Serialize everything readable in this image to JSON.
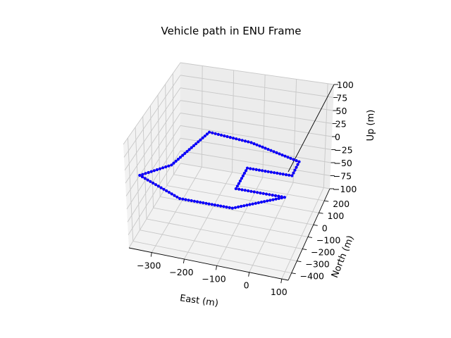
{
  "chart_data": {
    "type": "line",
    "title": "Vehicle path in ENU Frame",
    "xlabel": "East (m)",
    "ylabel": "North (m)",
    "zlabel": "Up (m)",
    "x_ticks": [
      -300,
      -200,
      -100,
      0,
      100
    ],
    "y_ticks": [
      -400,
      -300,
      -200,
      -100,
      0,
      100,
      200
    ],
    "z_ticks": [
      -100,
      -75,
      -50,
      -25,
      0,
      25,
      50,
      75,
      100
    ],
    "xlim": [
      -370,
      120
    ],
    "ylim": [
      -460,
      300
    ],
    "zlim": [
      -100,
      100
    ],
    "grid": true,
    "series": [
      {
        "style": "line",
        "color": "#ff0000",
        "points": [
          {
            "x": -250,
            "y": 180,
            "z": 0
          },
          {
            "x": -110,
            "y": 150,
            "z": 0
          },
          {
            "x": 60,
            "y": 60,
            "z": 0
          },
          {
            "x": 60,
            "y": -60,
            "z": 0
          },
          {
            "x": -80,
            "y": -60,
            "z": 0
          },
          {
            "x": -80,
            "y": -240,
            "z": 0
          },
          {
            "x": 70,
            "y": -240,
            "z": 0
          },
          {
            "x": -60,
            "y": -400,
            "z": 0
          },
          {
            "x": -220,
            "y": -400,
            "z": 0
          },
          {
            "x": -370,
            "y": -270,
            "z": 0
          },
          {
            "x": -300,
            "y": -140,
            "z": 0
          },
          {
            "x": -250,
            "y": 180,
            "z": 0
          }
        ]
      },
      {
        "style": "markers",
        "color": "#0000ff",
        "points": [
          {
            "x": -250,
            "y": 180,
            "z": 0
          },
          {
            "x": -110,
            "y": 150,
            "z": 0
          },
          {
            "x": 60,
            "y": 60,
            "z": 0
          },
          {
            "x": 60,
            "y": -60,
            "z": 0
          },
          {
            "x": -80,
            "y": -60,
            "z": 0
          },
          {
            "x": -80,
            "y": -240,
            "z": 0
          },
          {
            "x": 70,
            "y": -240,
            "z": 0
          },
          {
            "x": -60,
            "y": -400,
            "z": 0
          },
          {
            "x": -220,
            "y": -400,
            "z": 0
          },
          {
            "x": -370,
            "y": -270,
            "z": 0
          },
          {
            "x": -300,
            "y": -140,
            "z": 0
          },
          {
            "x": -250,
            "y": 180,
            "z": 0
          }
        ]
      }
    ]
  }
}
